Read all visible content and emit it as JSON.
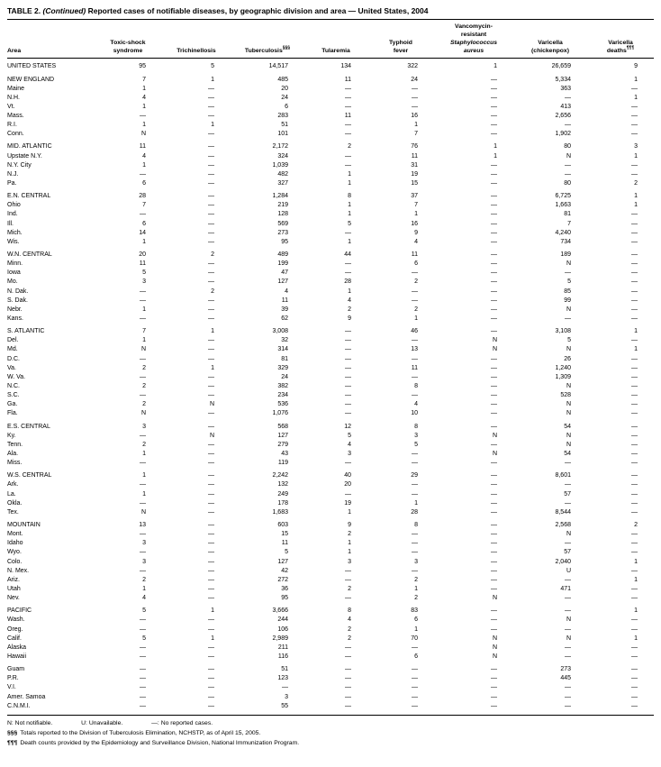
{
  "title": {
    "label": "TABLE 2.",
    "continued": "(Continued)",
    "text": "Reported cases of notifiable diseases, by geographic division and area — United States, 2004"
  },
  "header": {
    "area": "Area",
    "columns": [
      {
        "lines": [
          "Toxic-shock",
          "syndrome"
        ]
      },
      {
        "lines": [
          "Trichinellosis"
        ]
      },
      {
        "lines": [
          "Tuberculosis"
        ],
        "sup": "§§§"
      },
      {
        "lines": [
          "Tularemia"
        ]
      },
      {
        "lines": [
          "Typhoid",
          "fever"
        ]
      },
      {
        "lines": [
          "Vancomycin-",
          "resistant"
        ],
        "italic_lines": [
          "Staphylococcus",
          "aureus"
        ]
      },
      {
        "lines": [
          "Varicella",
          "(chickenpox)"
        ]
      },
      {
        "lines": [
          "Varicella",
          "deaths"
        ],
        "sup": "¶¶¶"
      }
    ]
  },
  "groups": [
    {
      "rows": [
        [
          "UNITED STATES",
          "95",
          "5",
          "14,517",
          "134",
          "322",
          "1",
          "26,659",
          "9"
        ]
      ]
    },
    {
      "rows": [
        [
          "NEW ENGLAND",
          "7",
          "1",
          "485",
          "11",
          "24",
          "—",
          "5,334",
          "1"
        ],
        [
          "Maine",
          "1",
          "—",
          "20",
          "—",
          "—",
          "—",
          "363",
          "—"
        ],
        [
          "N.H.",
          "4",
          "—",
          "24",
          "—",
          "—",
          "—",
          "—",
          "1"
        ],
        [
          "Vt.",
          "1",
          "—",
          "6",
          "—",
          "—",
          "—",
          "413",
          "—"
        ],
        [
          "Mass.",
          "—",
          "—",
          "283",
          "11",
          "16",
          "—",
          "2,656",
          "—"
        ],
        [
          "R.I.",
          "1",
          "1",
          "51",
          "—",
          "1",
          "—",
          "—",
          "—"
        ],
        [
          "Conn.",
          "N",
          "—",
          "101",
          "—",
          "7",
          "—",
          "1,902",
          "—"
        ]
      ]
    },
    {
      "rows": [
        [
          "MID. ATLANTIC",
          "11",
          "—",
          "2,172",
          "2",
          "76",
          "1",
          "80",
          "3"
        ],
        [
          "Upstate N.Y.",
          "4",
          "—",
          "324",
          "—",
          "11",
          "1",
          "N",
          "1"
        ],
        [
          "N.Y. City",
          "1",
          "—",
          "1,039",
          "—",
          "31",
          "—",
          "—",
          "—"
        ],
        [
          "N.J.",
          "—",
          "—",
          "482",
          "1",
          "19",
          "—",
          "—",
          "—"
        ],
        [
          "Pa.",
          "6",
          "—",
          "327",
          "1",
          "15",
          "—",
          "80",
          "2"
        ]
      ]
    },
    {
      "rows": [
        [
          "E.N. CENTRAL",
          "28",
          "—",
          "1,284",
          "8",
          "37",
          "—",
          "6,725",
          "1"
        ],
        [
          "Ohio",
          "7",
          "—",
          "219",
          "1",
          "7",
          "—",
          "1,663",
          "1"
        ],
        [
          "Ind.",
          "—",
          "—",
          "128",
          "1",
          "1",
          "—",
          "81",
          "—"
        ],
        [
          "Ill.",
          "6",
          "—",
          "569",
          "5",
          "16",
          "—",
          "7",
          "—"
        ],
        [
          "Mich.",
          "14",
          "—",
          "273",
          "—",
          "9",
          "—",
          "4,240",
          "—"
        ],
        [
          "Wis.",
          "1",
          "—",
          "95",
          "1",
          "4",
          "—",
          "734",
          "—"
        ]
      ]
    },
    {
      "rows": [
        [
          "W.N. CENTRAL",
          "20",
          "2",
          "489",
          "44",
          "11",
          "—",
          "189",
          "—"
        ],
        [
          "Minn.",
          "11",
          "—",
          "199",
          "—",
          "6",
          "—",
          "N",
          "—"
        ],
        [
          "Iowa",
          "5",
          "—",
          "47",
          "—",
          "—",
          "—",
          "—",
          "—"
        ],
        [
          "Mo.",
          "3",
          "—",
          "127",
          "28",
          "2",
          "—",
          "5",
          "—"
        ],
        [
          "N. Dak.",
          "—",
          "2",
          "4",
          "1",
          "—",
          "—",
          "85",
          "—"
        ],
        [
          "S. Dak.",
          "—",
          "—",
          "11",
          "4",
          "—",
          "—",
          "99",
          "—"
        ],
        [
          "Nebr.",
          "1",
          "—",
          "39",
          "2",
          "2",
          "—",
          "N",
          "—"
        ],
        [
          "Kans.",
          "—",
          "—",
          "62",
          "9",
          "1",
          "—",
          "—",
          "—"
        ]
      ]
    },
    {
      "rows": [
        [
          "S. ATLANTIC",
          "7",
          "1",
          "3,008",
          "—",
          "46",
          "—",
          "3,108",
          "1"
        ],
        [
          "Del.",
          "1",
          "—",
          "32",
          "—",
          "—",
          "N",
          "5",
          "—"
        ],
        [
          "Md.",
          "N",
          "—",
          "314",
          "—",
          "13",
          "N",
          "N",
          "1"
        ],
        [
          "D.C.",
          "—",
          "—",
          "81",
          "—",
          "—",
          "—",
          "26",
          "—"
        ],
        [
          "Va.",
          "2",
          "1",
          "329",
          "—",
          "11",
          "—",
          "1,240",
          "—"
        ],
        [
          "W. Va.",
          "—",
          "—",
          "24",
          "—",
          "—",
          "—",
          "1,309",
          "—"
        ],
        [
          "N.C.",
          "2",
          "—",
          "382",
          "—",
          "8",
          "—",
          "N",
          "—"
        ],
        [
          "S.C.",
          "—",
          "—",
          "234",
          "—",
          "—",
          "—",
          "528",
          "—"
        ],
        [
          "Ga.",
          "2",
          "N",
          "536",
          "—",
          "4",
          "—",
          "N",
          "—"
        ],
        [
          "Fla.",
          "N",
          "—",
          "1,076",
          "—",
          "10",
          "—",
          "N",
          "—"
        ]
      ]
    },
    {
      "rows": [
        [
          "E.S. CENTRAL",
          "3",
          "—",
          "568",
          "12",
          "8",
          "—",
          "54",
          "—"
        ],
        [
          "Ky.",
          "—",
          "N",
          "127",
          "5",
          "3",
          "N",
          "N",
          "—"
        ],
        [
          "Tenn.",
          "2",
          "—",
          "279",
          "4",
          "5",
          "—",
          "N",
          "—"
        ],
        [
          "Ala.",
          "1",
          "—",
          "43",
          "3",
          "—",
          "N",
          "54",
          "—"
        ],
        [
          "Miss.",
          "—",
          "—",
          "119",
          "—",
          "—",
          "—",
          "—",
          "—"
        ]
      ]
    },
    {
      "rows": [
        [
          "W.S. CENTRAL",
          "1",
          "—",
          "2,242",
          "40",
          "29",
          "—",
          "8,601",
          "—"
        ],
        [
          "Ark.",
          "—",
          "—",
          "132",
          "20",
          "—",
          "—",
          "—",
          "—"
        ],
        [
          "La.",
          "1",
          "—",
          "249",
          "—",
          "—",
          "—",
          "57",
          "—"
        ],
        [
          "Okla.",
          "—",
          "—",
          "178",
          "19",
          "1",
          "—",
          "—",
          "—"
        ],
        [
          "Tex.",
          "N",
          "—",
          "1,683",
          "1",
          "28",
          "—",
          "8,544",
          "—"
        ]
      ]
    },
    {
      "rows": [
        [
          "MOUNTAIN",
          "13",
          "—",
          "603",
          "9",
          "8",
          "—",
          "2,568",
          "2"
        ],
        [
          "Mont.",
          "—",
          "—",
          "15",
          "2",
          "—",
          "—",
          "N",
          "—"
        ],
        [
          "Idaho",
          "3",
          "—",
          "11",
          "1",
          "—",
          "—",
          "—",
          "—"
        ],
        [
          "Wyo.",
          "—",
          "—",
          "5",
          "1",
          "—",
          "—",
          "57",
          "—"
        ],
        [
          "Colo.",
          "3",
          "—",
          "127",
          "3",
          "3",
          "—",
          "2,040",
          "1"
        ],
        [
          "N. Mex.",
          "—",
          "—",
          "42",
          "—",
          "—",
          "—",
          "U",
          "—"
        ],
        [
          "Ariz.",
          "2",
          "—",
          "272",
          "—",
          "2",
          "—",
          "—",
          "1"
        ],
        [
          "Utah",
          "1",
          "—",
          "36",
          "2",
          "1",
          "—",
          "471",
          "—"
        ],
        [
          "Nev.",
          "4",
          "—",
          "95",
          "—",
          "2",
          "N",
          "—",
          "—"
        ]
      ]
    },
    {
      "rows": [
        [
          "PACIFIC",
          "5",
          "1",
          "3,666",
          "8",
          "83",
          "—",
          "—",
          "1"
        ],
        [
          "Wash.",
          "—",
          "—",
          "244",
          "4",
          "6",
          "—",
          "N",
          "—"
        ],
        [
          "Oreg.",
          "—",
          "—",
          "106",
          "2",
          "1",
          "—",
          "—",
          "—"
        ],
        [
          "Calif.",
          "5",
          "1",
          "2,989",
          "2",
          "70",
          "N",
          "N",
          "1"
        ],
        [
          "Alaska",
          "—",
          "—",
          "211",
          "—",
          "—",
          "N",
          "—",
          "—"
        ],
        [
          "Hawaii",
          "—",
          "—",
          "116",
          "—",
          "6",
          "N",
          "—",
          "—"
        ]
      ]
    },
    {
      "rows": [
        [
          "Guam",
          "—",
          "—",
          "51",
          "—",
          "—",
          "—",
          "273",
          "—"
        ],
        [
          "P.R.",
          "—",
          "—",
          "123",
          "—",
          "—",
          "—",
          "445",
          "—"
        ],
        [
          "V.I.",
          "—",
          "—",
          "—",
          "—",
          "—",
          "—",
          "—",
          "—"
        ],
        [
          "Amer. Samoa",
          "—",
          "—",
          "3",
          "—",
          "—",
          "—",
          "—",
          "—"
        ],
        [
          "C.N.M.I.",
          "—",
          "—",
          "55",
          "—",
          "—",
          "—",
          "—",
          "—"
        ]
      ]
    }
  ],
  "footnotes": {
    "legend": [
      "N: Not notifiable.",
      "U: Unavailable.",
      "—: No reported cases."
    ],
    "notes": [
      {
        "sym": "§§§",
        "text": "Totals reported to the Division of Tuberculosis Elimination, NCHSTP, as of April 15, 2005."
      },
      {
        "sym": "¶¶¶",
        "text": "Death counts provided by the Epidemiology and Surveillance Division, National Immunization Program."
      }
    ]
  }
}
